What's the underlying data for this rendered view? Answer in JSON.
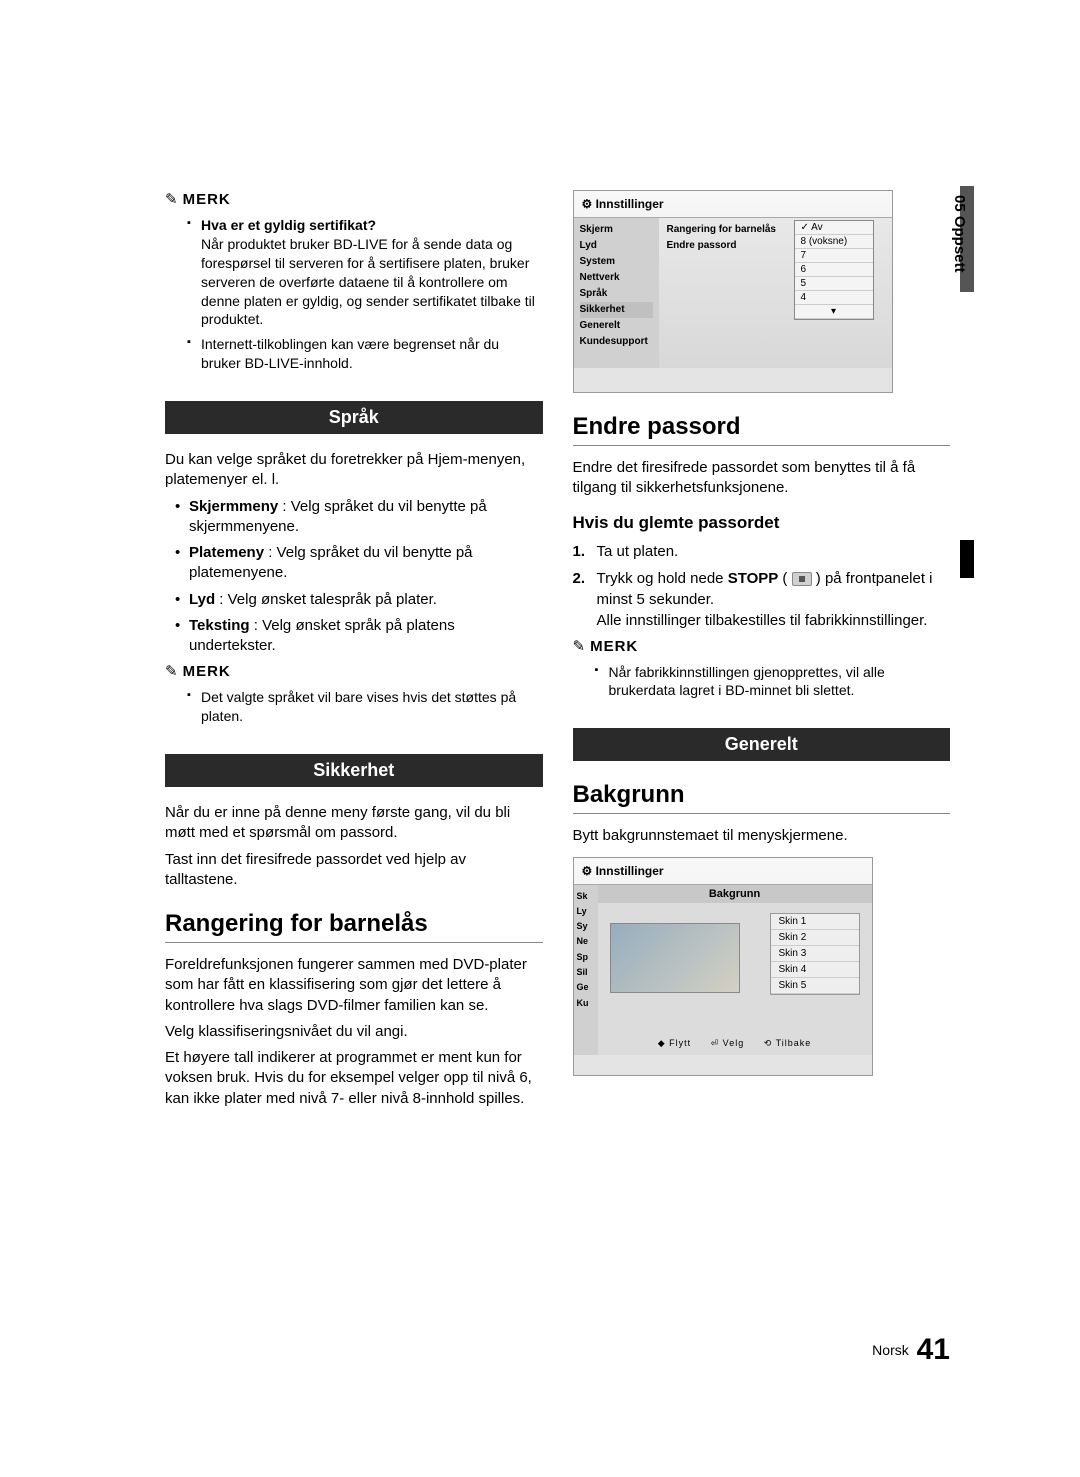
{
  "side_tab": "05  Oppsett",
  "left": {
    "merk1": {
      "label": "MERK",
      "items": [
        {
          "title": "Hva er et gyldig sertifikat?",
          "text": "Når produktet bruker BD-LIVE for å sende data og forespørsel til serveren for å sertifisere platen, bruker serveren de overførte dataene til å kontrollere om denne platen er gyldig, og sender sertifikatet tilbake til produktet."
        },
        {
          "title": "",
          "text": "Internett-tilkoblingen kan være begrenset når du bruker BD-LIVE-innhold."
        }
      ]
    },
    "sprak": {
      "bar": "Språk",
      "intro": "Du kan velge språket du foretrekker på Hjem-menyen, platemenyer el. l.",
      "items": [
        {
          "b": "Skjermmeny",
          "t": " : Velg språket du vil benytte på skjermmenyene."
        },
        {
          "b": "Platemeny",
          "t": " : Velg språket du vil benytte på platemenyene."
        },
        {
          "b": "Lyd",
          "t": " : Velg ønsket talespråk på plater."
        },
        {
          "b": "Teksting",
          "t": " : Velg ønsket språk på platens undertekster."
        }
      ],
      "merk_label": "MERK",
      "merk_text": "Det valgte språket vil bare vises hvis det støttes på platen."
    },
    "sikkerhet": {
      "bar": "Sikkerhet",
      "p1": "Når du er inne på denne meny første gang, vil du bli møtt med et spørsmål om passord.",
      "p2": "Tast inn det firesifrede passordet ved hjelp av talltastene."
    },
    "rangering": {
      "h": "Rangering for barnelås",
      "p1": "Foreldrefunksjonen fungerer sammen med DVD-plater som har fått en klassifisering som gjør det lettere å kontrollere hva slags DVD-filmer familien kan se.",
      "p2": "Velg klassifiseringsnivået du vil angi.",
      "p3": "Et høyere tall indikerer at programmet er ment kun for voksen bruk. Hvis du for eksempel velger opp til nivå 6, kan ikke plater med nivå 7- eller nivå 8-innhold spilles."
    }
  },
  "right": {
    "settings_shot": {
      "title": "Innstillinger",
      "sidebar": [
        "Skjerm",
        "Lyd",
        "System",
        "Nettverk",
        "Språk",
        "Sikkerhet",
        "Generelt",
        "Kundesupport"
      ],
      "sidebar_selected": "Sikkerhet",
      "main_rows": [
        "Rangering for barnelås",
        "Endre passord"
      ],
      "dropdown": [
        "Av",
        "8 (voksne)",
        "7",
        "6",
        "5",
        "4"
      ],
      "dropdown_checked": "Av"
    },
    "endre": {
      "h": "Endre passord",
      "p": "Endre det firesifrede passordet som benyttes til å få tilgang til sikkerhetsfunksjonene.",
      "sub_h": "Hvis du glemte passordet",
      "steps": [
        "Ta ut platen.",
        "Trykk og hold nede STOPP ( ■ ) på frontpanelet i minst 5 sekunder.\nAlle innstillinger tilbakestilles til fabrikkinnstillinger."
      ],
      "merk_label": "MERK",
      "merk_text": "Når fabrikkinnstillingen gjenopprettes, vil alle brukerdata lagret i BD-minnet bli slettet."
    },
    "generelt": {
      "bar": "Generelt",
      "h": "Bakgrunn",
      "p": "Bytt bakgrunnstemaet til menyskjermene."
    },
    "bak_shot": {
      "title": "Innstillinger",
      "sidebar": [
        "Sk",
        "Ly",
        "Sy",
        "Ne",
        "Sp",
        "Sil",
        "Ge",
        "Ku"
      ],
      "header": "Bakgrunn",
      "skins": [
        "Skin 1",
        "Skin 2",
        "Skin 3",
        "Skin 4",
        "Skin 5"
      ],
      "controls": {
        "move": "◆ Flytt",
        "select": "⏎ Velg",
        "back": "⟲ Tilbake"
      }
    }
  },
  "footer": {
    "lang": "Norsk",
    "page": "41"
  }
}
